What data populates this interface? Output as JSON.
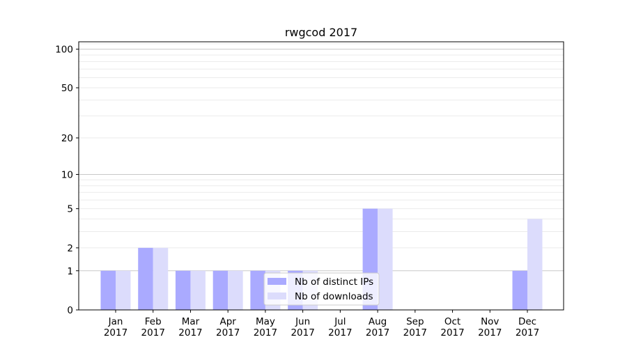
{
  "chart_data": {
    "type": "bar",
    "title": "rwgcod 2017",
    "xlabel": "",
    "ylabel": "",
    "yscale": "log(1+y)",
    "ylim": [
      0,
      116
    ],
    "yticks": [
      0,
      1,
      2,
      5,
      10,
      20,
      50,
      100
    ],
    "ytick_labels": [
      "0",
      "1",
      "2",
      "5",
      "10",
      "20",
      "50",
      "100"
    ],
    "grid": "horizontal, major and minor",
    "categories": [
      "Jan\n2017",
      "Feb\n2017",
      "Mar\n2017",
      "Apr\n2017",
      "May\n2017",
      "Jun\n2017",
      "Jul\n2017",
      "Aug\n2017",
      "Sep\n2017",
      "Oct\n2017",
      "Nov\n2017",
      "Dec\n2017"
    ],
    "category_lines": [
      [
        "Jan",
        "2017"
      ],
      [
        "Feb",
        "2017"
      ],
      [
        "Mar",
        "2017"
      ],
      [
        "Apr",
        "2017"
      ],
      [
        "May",
        "2017"
      ],
      [
        "Jun",
        "2017"
      ],
      [
        "Jul",
        "2017"
      ],
      [
        "Aug",
        "2017"
      ],
      [
        "Sep",
        "2017"
      ],
      [
        "Oct",
        "2017"
      ],
      [
        "Nov",
        "2017"
      ],
      [
        "Dec",
        "2017"
      ]
    ],
    "series": [
      {
        "name": "Nb of distinct IPs",
        "color": "#aaaaff",
        "values": [
          1,
          2,
          1,
          1,
          1,
          1,
          0,
          5,
          0,
          0,
          0,
          1
        ]
      },
      {
        "name": "Nb of downloads",
        "color": "#dcdcfc",
        "values": [
          1,
          2,
          1,
          1,
          1,
          1,
          0,
          5,
          0,
          0,
          0,
          4
        ]
      }
    ],
    "legend": {
      "placement": "lower center"
    }
  }
}
